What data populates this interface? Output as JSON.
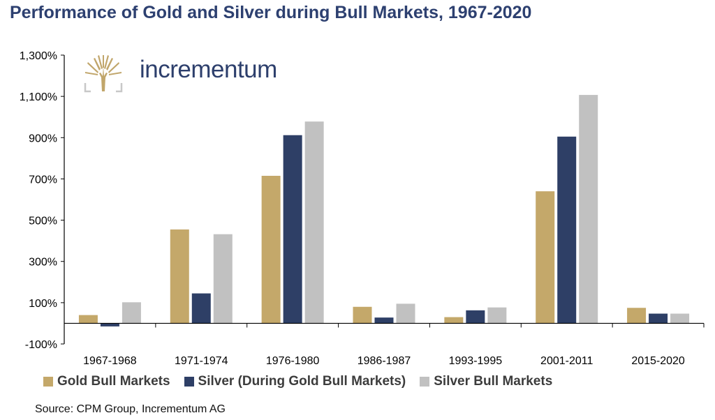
{
  "title": "Performance of Gold and Silver during Bull Markets, 1967-2020",
  "logo": {
    "text": "incrementum",
    "icon": "tree-icon",
    "color": "#c1a66b"
  },
  "source": "Source: CPM Group, Incrementum AG",
  "chart_data": {
    "type": "bar",
    "title": "Performance of Gold and Silver during Bull Markets, 1967-2020",
    "xlabel": "",
    "ylabel": "",
    "ylim": [
      -100,
      1300
    ],
    "yticks": [
      "-100%",
      "100%",
      "300%",
      "500%",
      "700%",
      "900%",
      "1,100%",
      "1,300%"
    ],
    "ytick_values": [
      -100,
      100,
      300,
      500,
      700,
      900,
      1100,
      1300
    ],
    "grid": false,
    "legend_position": "bottom",
    "categories": [
      "1967-1968",
      "1971-1974",
      "1976-1980",
      "1986-1987",
      "1993-1995",
      "2001-2011",
      "2015-2020"
    ],
    "series": [
      {
        "name": "Gold Bull Markets",
        "color": "#c4a86a",
        "values": [
          40,
          455,
          715,
          80,
          30,
          640,
          75
        ]
      },
      {
        "name": "Silver (During Gold Bull Markets)",
        "color": "#2e3f66",
        "values": [
          -15,
          145,
          912,
          28,
          63,
          905,
          47
        ]
      },
      {
        "name": "Silver Bull Markets",
        "color": "#c1c1c1",
        "values": [
          102,
          432,
          978,
          95,
          77,
          1107,
          47
        ]
      }
    ]
  }
}
